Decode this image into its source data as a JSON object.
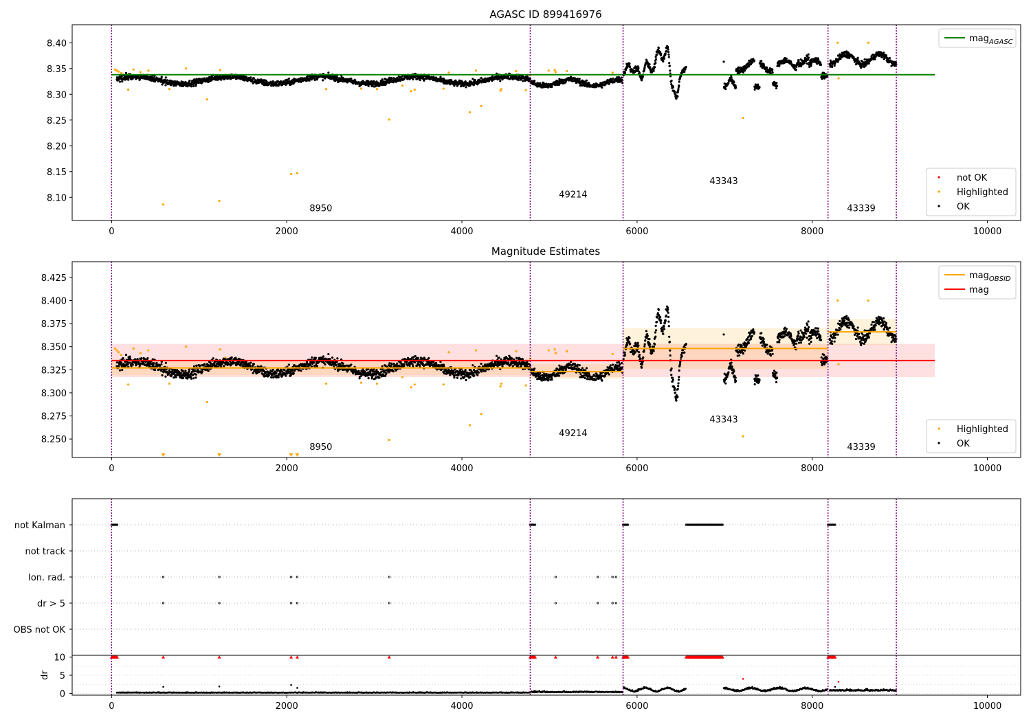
{
  "chart_data": [
    {
      "type": "scatter",
      "title": "AGASC ID 899416976",
      "xlim": [
        -450,
        10380
      ],
      "ylim": [
        8.055,
        8.435
      ],
      "xticks": [
        0,
        2000,
        4000,
        6000,
        8000,
        10000
      ],
      "yticks": [
        8.1,
        8.15,
        8.2,
        8.25,
        8.3,
        8.35,
        8.4
      ],
      "ytick_decimals": 2,
      "vlines": [
        0,
        4780,
        5840,
        8180,
        8960
      ],
      "obsid_labels": [
        {
          "text": "8950",
          "x": 2390,
          "y": 8.073
        },
        {
          "text": "49214",
          "x": 5270,
          "y": 8.1
        },
        {
          "text": "43343",
          "x": 6990,
          "y": 8.126
        },
        {
          "text": "43339",
          "x": 8560,
          "y": 8.073
        }
      ],
      "lines": [
        {
          "name": "mag_AGASC",
          "y": 8.338,
          "x0": 0,
          "x1": 9400,
          "color": "#008000"
        }
      ],
      "series": [
        {
          "name": "not OK",
          "color": "#ff0000",
          "points": []
        },
        {
          "name": "Highlighted",
          "color": "#ffa500",
          "points": [
            [
              40,
              8.348
            ],
            [
              60,
              8.346
            ],
            [
              80,
              8.344
            ],
            [
              110,
              8.341
            ],
            [
              190,
              8.309
            ],
            [
              250,
              8.348
            ],
            [
              330,
              8.343
            ],
            [
              420,
              8.346
            ],
            [
              590,
              8.086
            ],
            [
              660,
              8.31
            ],
            [
              850,
              8.35
            ],
            [
              1090,
              8.29
            ],
            [
              1230,
              8.093
            ],
            [
              1240,
              8.347
            ],
            [
              1300,
              8.338
            ],
            [
              2050,
              8.145
            ],
            [
              2120,
              8.147
            ],
            [
              2450,
              8.31
            ],
            [
              2850,
              8.311
            ],
            [
              3030,
              8.31
            ],
            [
              3170,
              8.251
            ],
            [
              3320,
              8.317
            ],
            [
              3420,
              8.306
            ],
            [
              3460,
              8.309
            ],
            [
              3790,
              8.311
            ],
            [
              3850,
              8.342
            ],
            [
              4090,
              8.265
            ],
            [
              4160,
              8.346
            ],
            [
              4220,
              8.277
            ],
            [
              4440,
              8.307
            ],
            [
              4450,
              8.31
            ],
            [
              4620,
              8.345
            ],
            [
              4730,
              8.308
            ],
            [
              4780,
              8.337
            ],
            [
              4990,
              8.346
            ],
            [
              5060,
              8.347
            ],
            [
              5070,
              8.343
            ],
            [
              5200,
              8.345
            ],
            [
              5720,
              8.342
            ],
            [
              7210,
              8.254
            ],
            [
              8290,
              8.4
            ],
            [
              8300,
              8.331
            ],
            [
              8640,
              8.4
            ]
          ]
        },
        {
          "name": "OK",
          "color": "#000000",
          "gen": "mag"
        }
      ],
      "legends": [
        {
          "pos": "top-right",
          "entries": [
            {
              "label": "mag",
              "sub": "AGASC",
              "kind": "line",
              "color": "#008000"
            }
          ]
        },
        {
          "pos": "bottom-right",
          "entries": [
            {
              "label": "not OK",
              "kind": "dot",
              "color": "#ff0000"
            },
            {
              "label": "Highlighted",
              "kind": "dot",
              "color": "#ffa500"
            },
            {
              "label": "OK",
              "kind": "dot",
              "color": "#000000"
            }
          ]
        }
      ]
    },
    {
      "type": "scatter",
      "title": "Magnitude Estimates",
      "xlim": [
        -450,
        10380
      ],
      "ylim": [
        8.23,
        8.442
      ],
      "xticks": [
        0,
        2000,
        4000,
        6000,
        8000,
        10000
      ],
      "yticks": [
        8.25,
        8.275,
        8.3,
        8.325,
        8.35,
        8.375,
        8.4,
        8.425
      ],
      "ytick_decimals": 3,
      "vlines": [
        0,
        4780,
        5840,
        8180,
        8960
      ],
      "obsid_labels": [
        {
          "text": "8950",
          "x": 2390,
          "y": 8.238
        },
        {
          "text": "49214",
          "x": 5270,
          "y": 8.253
        },
        {
          "text": "43343",
          "x": 6990,
          "y": 8.268
        },
        {
          "text": "43339",
          "x": 8560,
          "y": 8.238
        }
      ],
      "bands": [
        {
          "x0": 0,
          "x1": 9400,
          "y0": 8.317,
          "y1": 8.353,
          "color": "#ff0000",
          "opacity": 0.12
        },
        {
          "x0": 0,
          "x1": 4780,
          "y0": 8.319,
          "y1": 8.335,
          "color": "#ffa500",
          "opacity": 0.14
        },
        {
          "x0": 4780,
          "x1": 5840,
          "y0": 8.315,
          "y1": 8.331,
          "color": "#ffa500",
          "opacity": 0.14
        },
        {
          "x0": 5840,
          "x1": 8180,
          "y0": 8.326,
          "y1": 8.37,
          "color": "#ffa500",
          "opacity": 0.14
        },
        {
          "x0": 8180,
          "x1": 8960,
          "y0": 8.352,
          "y1": 8.38,
          "color": "#ffa500",
          "opacity": 0.14
        }
      ],
      "lines": [
        {
          "name": "mag",
          "y": 8.335,
          "x0": 0,
          "x1": 9400,
          "color": "#ff0000"
        },
        {
          "name": "mag_OBSID",
          "y": 8.327,
          "x0": 0,
          "x1": 4780,
          "color": "#ffa500"
        },
        {
          "name": "mag_OBSID",
          "y": 8.323,
          "x0": 4780,
          "x1": 5840,
          "color": "#ffa500"
        },
        {
          "name": "mag_OBSID",
          "y": 8.348,
          "x0": 5840,
          "x1": 8180,
          "color": "#ffa500"
        },
        {
          "name": "mag_OBSID",
          "y": 8.366,
          "x0": 8180,
          "x1": 8960,
          "color": "#ffa500"
        }
      ],
      "series": [
        {
          "name": "Highlighted",
          "color": "#ffa500",
          "points": [
            [
              40,
              8.348
            ],
            [
              60,
              8.346
            ],
            [
              80,
              8.344
            ],
            [
              110,
              8.341
            ],
            [
              190,
              8.309
            ],
            [
              250,
              8.348
            ],
            [
              330,
              8.343
            ],
            [
              420,
              8.346
            ],
            [
              660,
              8.31
            ],
            [
              850,
              8.35
            ],
            [
              1090,
              8.29
            ],
            [
              1240,
              8.347
            ],
            [
              1300,
              8.338
            ],
            [
              2450,
              8.31
            ],
            [
              2850,
              8.311
            ],
            [
              3030,
              8.31
            ],
            [
              3170,
              8.249
            ],
            [
              3320,
              8.317
            ],
            [
              3420,
              8.306
            ],
            [
              3460,
              8.309
            ],
            [
              3790,
              8.309
            ],
            [
              3850,
              8.344
            ],
            [
              4090,
              8.265
            ],
            [
              4160,
              8.346
            ],
            [
              4220,
              8.277
            ],
            [
              4440,
              8.307
            ],
            [
              4450,
              8.31
            ],
            [
              4620,
              8.345
            ],
            [
              4730,
              8.308
            ],
            [
              4780,
              8.337
            ],
            [
              4990,
              8.346
            ],
            [
              5060,
              8.347
            ],
            [
              5070,
              8.343
            ],
            [
              5200,
              8.345
            ],
            [
              5720,
              8.342
            ],
            [
              7210,
              8.253
            ],
            [
              8290,
              8.4
            ],
            [
              8300,
              8.331
            ],
            [
              8640,
              8.4
            ]
          ]
        },
        {
          "name": "OK",
          "color": "#000000",
          "gen": "mag"
        }
      ],
      "clipped_markers": [
        590,
        1230,
        2050,
        2120
      ],
      "legends": [
        {
          "pos": "top-right",
          "entries": [
            {
              "label": "mag",
              "sub": "OBSID",
              "kind": "line",
              "color": "#ffa500"
            },
            {
              "label": "mag",
              "kind": "line",
              "color": "#ff0000"
            }
          ]
        },
        {
          "pos": "bottom-right",
          "entries": [
            {
              "label": "Highlighted",
              "kind": "dot",
              "color": "#ffa500"
            },
            {
              "label": "OK",
              "kind": "dot",
              "color": "#000000"
            }
          ]
        }
      ]
    },
    {
      "type": "scatter",
      "title": "",
      "xlim": [
        -450,
        10380
      ],
      "categories": [
        "not Kalman",
        "not track",
        "Ion. rad.",
        "dr > 5",
        "OBS not OK"
      ],
      "vlines": [
        0,
        4780,
        5840,
        8180,
        8960
      ],
      "flags": {
        "not Kalman": [
          [
            0,
            70
          ],
          [
            4780,
            4840
          ],
          [
            5840,
            5900
          ],
          [
            6560,
            6980
          ],
          [
            8180,
            8260
          ]
        ],
        "not track": [],
        "Ion. rad.": [
          590,
          1230,
          2050,
          2120,
          3170,
          5070,
          5550,
          5720,
          5760
        ],
        "dr > 5": [
          590,
          1230,
          2050,
          2120,
          3170,
          5070,
          5550,
          5720,
          5760
        ],
        "OBS not OK": []
      }
    },
    {
      "type": "scatter",
      "title": "",
      "ylabel": "dr",
      "xlim": [
        -450,
        10380
      ],
      "ylim": [
        -0.5,
        10.5
      ],
      "xticks": [
        0,
        2000,
        4000,
        6000,
        8000,
        10000
      ],
      "yticks": [
        0,
        5,
        10
      ],
      "vlines": [
        0,
        4780,
        5840,
        8180,
        8960
      ],
      "dr_red": {
        "spans": [
          [
            0,
            70
          ],
          [
            4780,
            4840
          ],
          [
            5840,
            5900
          ],
          [
            6560,
            6980
          ],
          [
            8180,
            8260
          ]
        ],
        "points": [
          590,
          1230,
          2050,
          2120,
          3170,
          5070,
          5550,
          5720,
          5760
        ]
      },
      "dr_extra": [
        [
          590,
          1.8
        ],
        [
          1230,
          1.9
        ],
        [
          2050,
          2.3
        ],
        [
          2120,
          1.5
        ],
        [
          7210,
          4.0
        ],
        [
          8300,
          3.2
        ],
        [
          8260,
          1.8
        ]
      ],
      "series": [
        {
          "name": "OK",
          "color": "#000000",
          "gen": "dr"
        }
      ]
    }
  ]
}
